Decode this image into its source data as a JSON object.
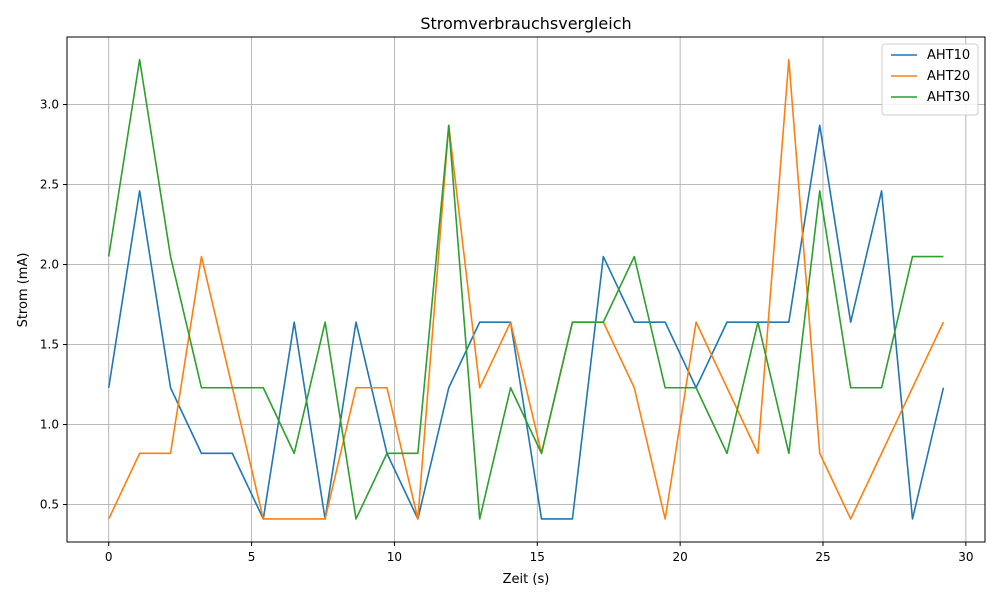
{
  "chart_data": {
    "type": "line",
    "title": "Stromverbrauchsvergleich",
    "xlabel": "Zeit (s)",
    "ylabel": "Strom (mA)",
    "xlim": [
      -1.46,
      30.67
    ],
    "ylim": [
      0.266,
      3.422
    ],
    "xticks": [
      0,
      5,
      10,
      15,
      20,
      25,
      30
    ],
    "yticks": [
      0.5,
      1.0,
      1.5,
      2.0,
      2.5,
      3.0
    ],
    "xtick_labels": [
      "0",
      "5",
      "10",
      "15",
      "20",
      "25",
      "30"
    ],
    "ytick_labels": [
      "0.5",
      "1.0",
      "1.5",
      "2.0",
      "2.5",
      "3.0"
    ],
    "grid": true,
    "legend_position": "top-right",
    "x": [
      0,
      1.082,
      2.164,
      3.246,
      4.328,
      5.41,
      6.492,
      7.574,
      8.656,
      9.738,
      10.82,
      11.902,
      12.984,
      14.066,
      15.148,
      16.23,
      17.312,
      18.394,
      19.476,
      20.558,
      21.64,
      22.722,
      23.804,
      24.886,
      25.968,
      27.05,
      28.132,
      29.214
    ],
    "series": [
      {
        "name": "AHT10",
        "color": "#1f77b4",
        "values": [
          1.23,
          2.46,
          1.23,
          0.82,
          0.82,
          0.41,
          1.64,
          0.41,
          1.64,
          0.82,
          0.41,
          1.23,
          1.64,
          1.64,
          0.41,
          0.41,
          2.05,
          1.64,
          1.64,
          1.23,
          1.64,
          1.64,
          1.64,
          2.87,
          1.64,
          2.46,
          0.41,
          1.23
        ]
      },
      {
        "name": "AHT20",
        "color": "#ff7f0e",
        "values": [
          0.41,
          0.82,
          0.82,
          2.05,
          1.23,
          0.41,
          0.41,
          0.41,
          1.23,
          1.23,
          0.41,
          2.87,
          1.23,
          1.64,
          0.82,
          1.64,
          1.64,
          1.23,
          0.41,
          1.64,
          1.23,
          0.82,
          3.28,
          0.82,
          0.41,
          0.82,
          1.23,
          1.64
        ]
      },
      {
        "name": "AHT30",
        "color": "#2ca02c",
        "values": [
          2.05,
          3.28,
          2.05,
          1.23,
          1.23,
          1.23,
          0.82,
          1.64,
          0.41,
          0.82,
          0.82,
          2.87,
          0.41,
          1.23,
          0.82,
          1.64,
          1.64,
          2.05,
          1.23,
          1.23,
          0.82,
          1.64,
          0.82,
          2.46,
          1.23,
          1.23,
          2.05,
          2.05
        ]
      }
    ]
  }
}
